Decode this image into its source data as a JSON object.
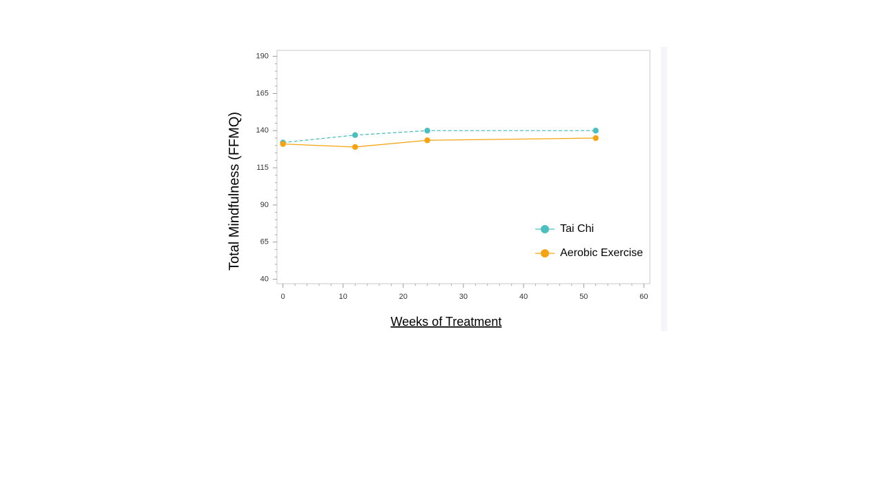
{
  "chart_data": {
    "type": "line",
    "x_label": "Weeks of Treatment",
    "y_label": "Total Mindfulness (FFMQ)",
    "xlim": [
      -1,
      61
    ],
    "xticks": [
      0,
      10,
      20,
      30,
      40,
      50,
      60
    ],
    "ylim": [
      37,
      194
    ],
    "yticks": [
      40,
      65,
      90,
      115,
      140,
      165,
      190
    ],
    "legend": "lower right",
    "series": [
      {
        "name": "Tai Chi",
        "color": "#4bbfbf",
        "linestyle": "dashed",
        "x": [
          0,
          12,
          24,
          52
        ],
        "values": [
          132,
          137,
          140,
          140
        ]
      },
      {
        "name": "Aerobic Exercise",
        "color": "#f5a310",
        "linestyle": "solid",
        "x": [
          0,
          12,
          24,
          52
        ],
        "values": [
          131,
          129,
          133.5,
          135
        ]
      }
    ]
  }
}
